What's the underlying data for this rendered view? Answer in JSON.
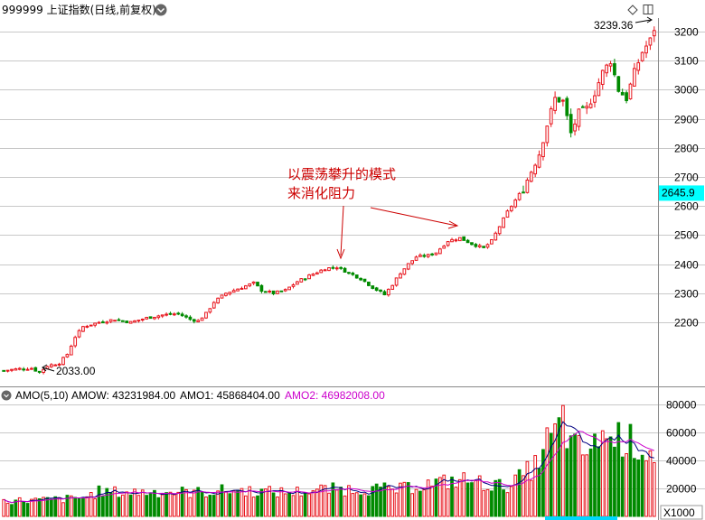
{
  "header": {
    "title": "999999 上证指数(日线,前复权)",
    "chevron_icon": "chevron-down-icon",
    "diamond_icon": "diamond-icon",
    "window_icon": "window-icon"
  },
  "price_axis": {
    "ticks": [
      "3200",
      "3100",
      "3000",
      "2900",
      "2800",
      "2700",
      "2600",
      "2500",
      "2400",
      "2300",
      "2200"
    ],
    "current_price": "2645.9",
    "current_price_color": "#00ffff"
  },
  "annotations": {
    "high_label": "3239.36",
    "low_label": "2033.00",
    "note_line1": "以震荡攀升的模式",
    "note_line2": "来消化阻力"
  },
  "volume_header": {
    "amo_title": "AMO(5,10)",
    "amow": "AMOW: 43231984.00",
    "amo1": "AMO1: 45868404.00",
    "amo2": "AMO2: 46982008.00"
  },
  "volume_axis": {
    "ticks": [
      "80000",
      "60000",
      "40000",
      "20000"
    ],
    "unit": "X1000"
  },
  "colors": {
    "up": "#e8141c",
    "down": "#008a00",
    "ma5": "#000080",
    "ma10": "#cc00cc",
    "grid": "#c8c8c8",
    "annotation": "#cc0000"
  },
  "chart_data": [
    {
      "type": "candlestick",
      "title": "999999 上证指数(日线,前复权)",
      "ylim": [
        2010,
        3250
      ],
      "y_ticks": [
        2200,
        2300,
        2400,
        2500,
        2600,
        2700,
        2800,
        2900,
        3000,
        3100,
        3200
      ],
      "current_price": 2645.9,
      "high": 3239.36,
      "low": 2033.0,
      "anchors": [
        [
          0,
          2034
        ],
        [
          4,
          2040
        ],
        [
          7,
          2042
        ],
        [
          9,
          2028
        ],
        [
          11,
          2050
        ],
        [
          14,
          2060
        ],
        [
          16,
          2090
        ],
        [
          18,
          2150
        ],
        [
          20,
          2185
        ],
        [
          24,
          2200
        ],
        [
          28,
          2210
        ],
        [
          32,
          2200
        ],
        [
          36,
          2215
        ],
        [
          40,
          2225
        ],
        [
          44,
          2230
        ],
        [
          47,
          2210
        ],
        [
          49,
          2205
        ],
        [
          51,
          2230
        ],
        [
          53,
          2270
        ],
        [
          56,
          2300
        ],
        [
          60,
          2320
        ],
        [
          63,
          2335
        ],
        [
          65,
          2310
        ],
        [
          68,
          2300
        ],
        [
          71,
          2310
        ],
        [
          74,
          2340
        ],
        [
          77,
          2360
        ],
        [
          81,
          2385
        ],
        [
          84,
          2390
        ],
        [
          87,
          2370
        ],
        [
          90,
          2350
        ],
        [
          93,
          2320
        ],
        [
          96,
          2295
        ],
        [
          98,
          2330
        ],
        [
          100,
          2370
        ],
        [
          102,
          2400
        ],
        [
          104,
          2425
        ],
        [
          107,
          2430
        ],
        [
          109,
          2440
        ],
        [
          112,
          2480
        ],
        [
          115,
          2490
        ],
        [
          118,
          2470
        ],
        [
          121,
          2455
        ],
        [
          123,
          2480
        ],
        [
          125,
          2530
        ],
        [
          127,
          2580
        ],
        [
          129,
          2620
        ],
        [
          131,
          2660
        ],
        [
          133,
          2720
        ],
        [
          135,
          2780
        ],
        [
          137,
          2880
        ],
        [
          139,
          2970
        ],
        [
          141,
          2960
        ],
        [
          143,
          2850
        ],
        [
          145,
          2920
        ],
        [
          147,
          2935
        ],
        [
          149,
          2990
        ],
        [
          151,
          3060
        ],
        [
          153,
          3100
        ],
        [
          155,
          3000
        ],
        [
          157,
          2970
        ],
        [
          159,
          3060
        ],
        [
          161,
          3130
        ],
        [
          163,
          3170
        ],
        [
          164,
          3210
        ]
      ]
    },
    {
      "type": "bar",
      "title": "AMO(5,10)",
      "ylim": [
        0,
        85000
      ],
      "y_ticks": [
        20000,
        40000,
        60000,
        80000
      ],
      "unit": "X1000",
      "series": [
        {
          "name": "AMOW",
          "last": 43231984.0
        },
        {
          "name": "AMO1",
          "last": 45868404.0
        },
        {
          "name": "AMO2",
          "last": 46982008.0
        }
      ],
      "anchors": [
        [
          0,
          11000
        ],
        [
          10,
          11500
        ],
        [
          20,
          13000
        ],
        [
          24,
          17500
        ],
        [
          30,
          17000
        ],
        [
          40,
          17500
        ],
        [
          50,
          17000
        ],
        [
          56,
          18500
        ],
        [
          60,
          18500
        ],
        [
          66,
          17500
        ],
        [
          72,
          17000
        ],
        [
          80,
          19000
        ],
        [
          90,
          19500
        ],
        [
          100,
          19000
        ],
        [
          104,
          22000
        ],
        [
          110,
          24000
        ],
        [
          116,
          26000
        ],
        [
          120,
          24000
        ],
        [
          126,
          21000
        ],
        [
          130,
          27000
        ],
        [
          134,
          36000
        ],
        [
          137,
          53000
        ],
        [
          139,
          58000
        ],
        [
          141,
          68000
        ],
        [
          143,
          50000
        ],
        [
          146,
          46000
        ],
        [
          150,
          50000
        ],
        [
          155,
          57000
        ],
        [
          158,
          53000
        ],
        [
          161,
          48000
        ],
        [
          164,
          45000
        ]
      ]
    }
  ]
}
